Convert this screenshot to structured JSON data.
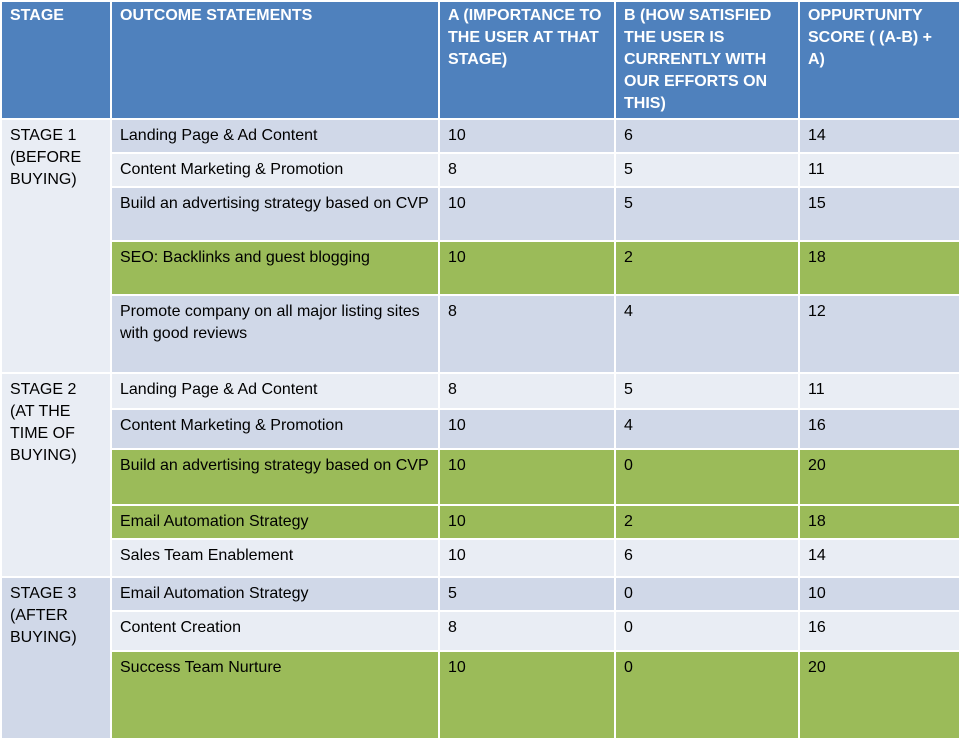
{
  "headers": [
    "STAGE",
    "OUTCOME STATEMENTS",
    "A (IMPORTANCE TO THE USER AT THAT STAGE)",
    "B (HOW SATISFIED THE USER IS CURRENTLY WITH OUR EFFORTS ON THIS)",
    "OPPURTUNITY SCORE ( (A-B) + A)"
  ],
  "stages": [
    {
      "label": "STAGE 1 (BEFORE BUYING)",
      "rows": [
        {
          "outcome": "Landing Page & Ad Content",
          "a": "10",
          "b": "6",
          "score": "14",
          "highlight": false
        },
        {
          "outcome": "Content Marketing & Promotion",
          "a": "8",
          "b": "5",
          "score": "11",
          "highlight": false
        },
        {
          "outcome": "Build an advertising strategy based on CVP",
          "a": "10",
          "b": "5",
          "score": "15",
          "highlight": false
        },
        {
          "outcome": "SEO:  Backlinks and guest blogging",
          "a": "10",
          "b": "2",
          "score": "18",
          "highlight": true
        },
        {
          "outcome": "Promote company on all major listing sites  with good reviews",
          "a": "8",
          "b": "4",
          "score": "12",
          "highlight": false
        }
      ]
    },
    {
      "label": "STAGE 2 (AT THE TIME OF BUYING)",
      "rows": [
        {
          "outcome": "Landing Page & Ad Content",
          "a": "8",
          "b": "5",
          "score": "11",
          "highlight": false
        },
        {
          "outcome": "Content Marketing & Promotion",
          "a": "10",
          "b": "4",
          "score": "16",
          "highlight": false
        },
        {
          "outcome": "Build an advertising strategy based on CVP",
          "a": "10",
          "b": "0",
          "score": "20",
          "highlight": true
        },
        {
          "outcome": "Email Automation Strategy",
          "a": "10",
          "b": "2",
          "score": "18",
          "highlight": true
        },
        {
          "outcome": "Sales Team Enablement",
          "a": "10",
          "b": "6",
          "score": "14",
          "highlight": false
        }
      ]
    },
    {
      "label": "STAGE 3 (AFTER BUYING)",
      "rows": [
        {
          "outcome": "Email Automation Strategy",
          "a": "5",
          "b": "0",
          "score": "10",
          "highlight": false
        },
        {
          "outcome": "Content Creation",
          "a": "8",
          "b": "0",
          "score": "16",
          "highlight": false
        },
        {
          "outcome": "Success Team Nurture",
          "a": "10",
          "b": "0",
          "score": "20",
          "highlight": true
        }
      ]
    }
  ],
  "colors": {
    "header": "#4f81bd",
    "row_dark": "#d0d8e8",
    "row_light": "#e9edf4",
    "highlight": "#9bbb59"
  }
}
